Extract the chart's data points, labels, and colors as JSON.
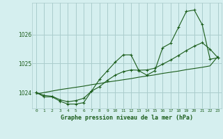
{
  "hours": [
    0,
    1,
    2,
    3,
    4,
    5,
    6,
    7,
    8,
    9,
    10,
    11,
    12,
    13,
    14,
    15,
    16,
    17,
    18,
    19,
    20,
    21,
    22,
    23
  ],
  "pressure_main": [
    1024.0,
    1023.85,
    1023.85,
    1023.7,
    1023.6,
    1023.6,
    1023.65,
    1024.05,
    1024.45,
    1024.75,
    1025.05,
    1025.3,
    1025.3,
    1024.75,
    1024.6,
    1024.75,
    1025.55,
    1025.7,
    1026.25,
    1026.8,
    1026.85,
    1026.35,
    1025.15,
    1025.2
  ],
  "pressure_smooth": [
    1024.0,
    1023.9,
    1023.87,
    1023.75,
    1023.68,
    1023.72,
    1023.8,
    1024.05,
    1024.2,
    1024.42,
    1024.6,
    1024.72,
    1024.78,
    1024.77,
    1024.78,
    1024.84,
    1024.98,
    1025.12,
    1025.28,
    1025.45,
    1025.6,
    1025.72,
    1025.5,
    1025.2
  ],
  "pressure_trend": [
    1023.95,
    1024.0,
    1024.05,
    1024.1,
    1024.14,
    1024.18,
    1024.22,
    1024.27,
    1024.31,
    1024.36,
    1024.4,
    1024.44,
    1024.48,
    1024.53,
    1024.57,
    1024.61,
    1024.66,
    1024.7,
    1024.74,
    1024.79,
    1024.83,
    1024.87,
    1024.92,
    1025.25
  ],
  "ylim": [
    1023.45,
    1027.1
  ],
  "yticks": [
    1024,
    1025,
    1026
  ],
  "xlabel": "Graphe pression niveau de la mer (hPa)",
  "bg_color": "#d5efef",
  "grid_color": "#aacccc",
  "line_color": "#1a5c1a",
  "xlabel_color": "#1a5c1a"
}
